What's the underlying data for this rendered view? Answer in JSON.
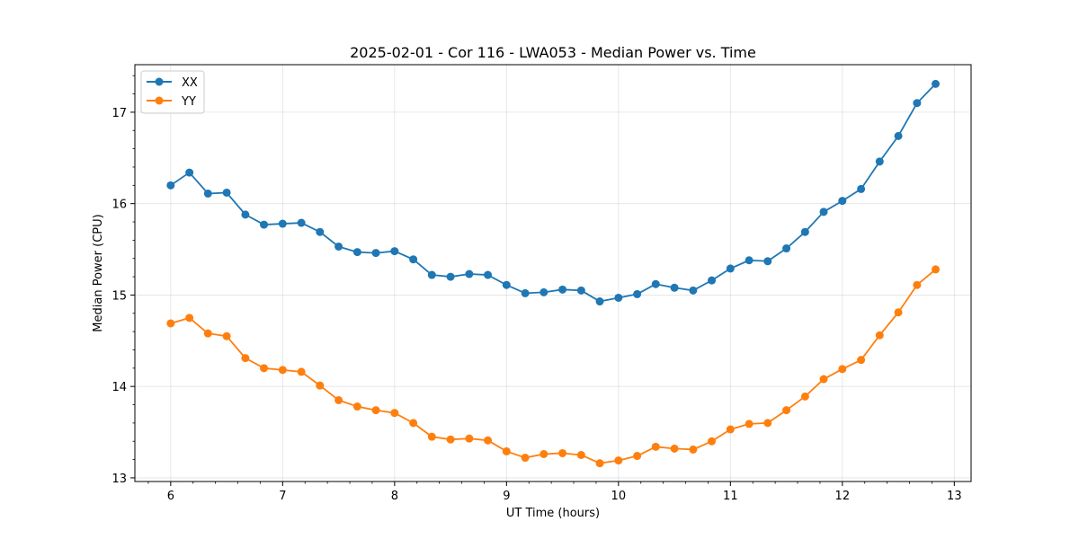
{
  "chart_data": {
    "type": "line",
    "title": "2025-02-01 - Cor 116 - LWA053 - Median Power vs. Time",
    "xlabel": "UT Time (hours)",
    "ylabel": "Median Power (CPU)",
    "xlim": [
      5.68,
      13.15
    ],
    "ylim": [
      12.96,
      17.52
    ],
    "xticks": [
      6,
      7,
      8,
      9,
      10,
      11,
      12,
      13
    ],
    "xtick_labels": [
      "6",
      "7",
      "8",
      "9",
      "10",
      "11",
      "12",
      "13"
    ],
    "yticks": [
      13,
      14,
      15,
      16,
      17
    ],
    "ytick_labels": [
      "13",
      "14",
      "15",
      "16",
      "17"
    ],
    "grid": true,
    "legend_position": "top-left",
    "x": [
      6.0,
      6.167,
      6.333,
      6.5,
      6.667,
      6.833,
      7.0,
      7.167,
      7.333,
      7.5,
      7.667,
      7.833,
      8.0,
      8.167,
      8.333,
      8.5,
      8.667,
      8.833,
      9.0,
      9.167,
      9.333,
      9.5,
      9.667,
      9.833,
      10.0,
      10.167,
      10.333,
      10.5,
      10.667,
      10.833,
      11.0,
      11.167,
      11.333,
      11.5,
      11.667,
      11.833,
      12.0,
      12.167,
      12.333,
      12.5,
      12.667,
      12.833
    ],
    "series": [
      {
        "name": "XX",
        "color": "#1f77b4",
        "values": [
          16.2,
          16.34,
          16.11,
          16.12,
          15.88,
          15.77,
          15.78,
          15.79,
          15.69,
          15.53,
          15.47,
          15.46,
          15.48,
          15.39,
          15.22,
          15.2,
          15.23,
          15.22,
          15.11,
          15.02,
          15.03,
          15.06,
          15.05,
          14.93,
          14.97,
          15.01,
          15.12,
          15.08,
          15.05,
          15.16,
          15.29,
          15.38,
          15.37,
          15.51,
          15.69,
          15.91,
          16.03,
          16.16,
          16.46,
          16.74,
          17.1,
          17.31
        ]
      },
      {
        "name": "YY",
        "color": "#ff7f0e",
        "values": [
          14.69,
          14.75,
          14.58,
          14.55,
          14.31,
          14.2,
          14.18,
          14.16,
          14.01,
          13.85,
          13.78,
          13.74,
          13.71,
          13.6,
          13.45,
          13.42,
          13.43,
          13.41,
          13.29,
          13.22,
          13.26,
          13.27,
          13.25,
          13.16,
          13.19,
          13.24,
          13.34,
          13.32,
          13.31,
          13.4,
          13.53,
          13.59,
          13.6,
          13.74,
          13.89,
          14.08,
          14.19,
          14.29,
          14.56,
          14.81,
          15.11,
          15.28
        ]
      }
    ]
  }
}
